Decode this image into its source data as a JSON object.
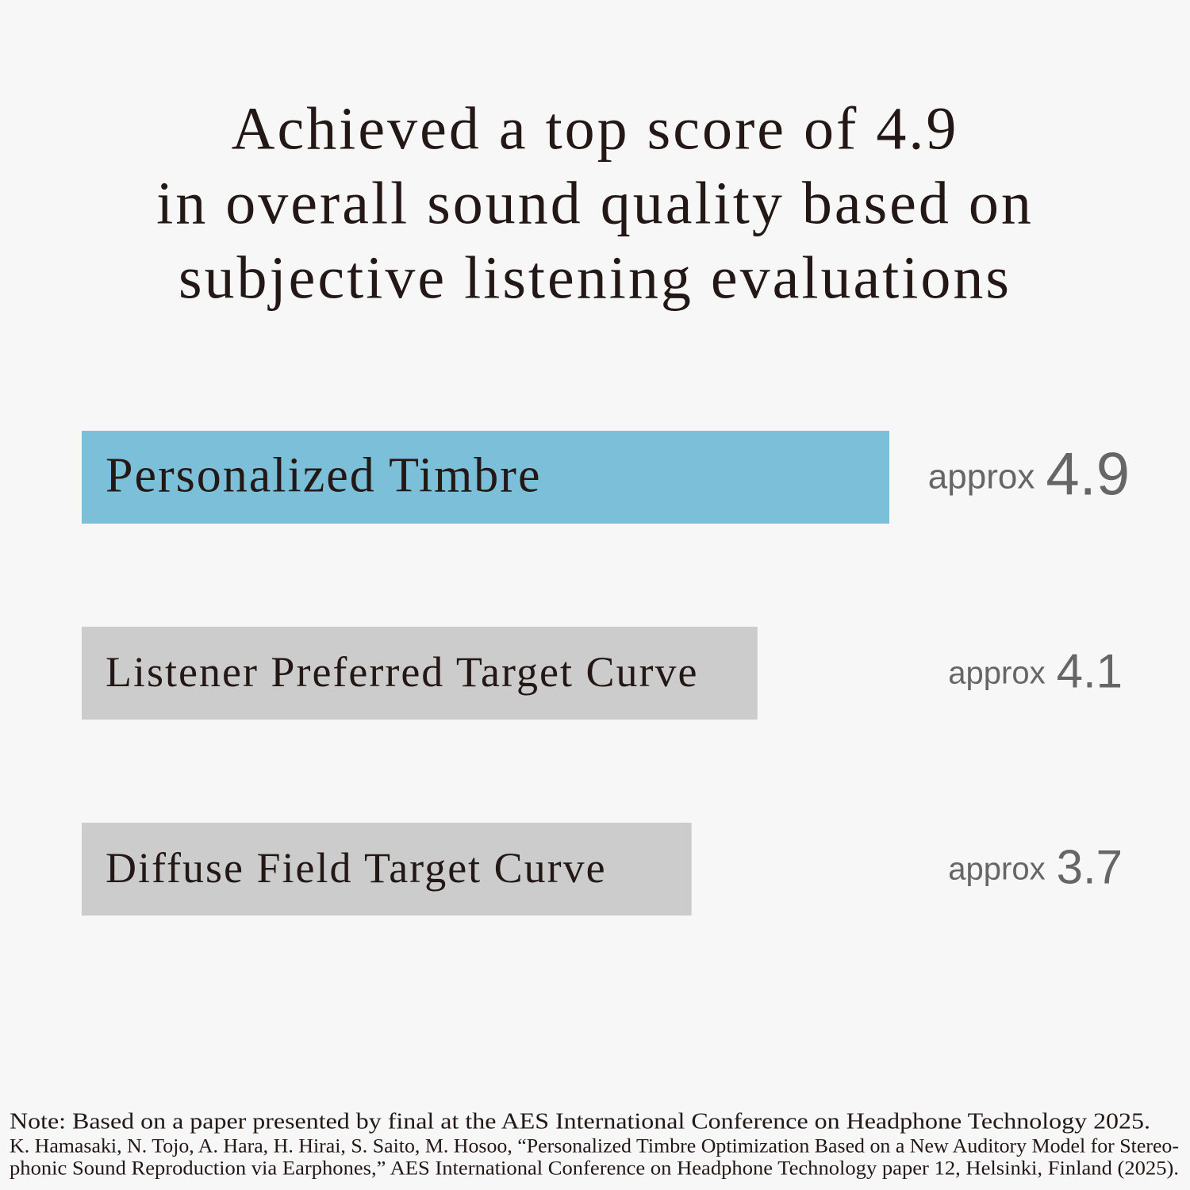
{
  "chart_data": {
    "type": "bar",
    "title": [
      "Achieved a top score of 4.9",
      "in overall sound quality based on",
      "subjective listening evaluations"
    ],
    "categories": [
      "Personalized Timbre",
      "Listener Preferred Target Curve",
      "Diffuse Field Target Curve"
    ],
    "values": [
      4.9,
      4.1,
      3.7
    ],
    "colors": [
      "#7bbfd9",
      "#cccccc",
      "#cccccc"
    ],
    "value_prefix": "approx",
    "note": [
      "Note: Based on a paper presented by final at the AES International Conference on Headphone Technology 2025.",
      "K. Hamasaki, N. Tojo, A. Hara, H. Hirai, S. Saito, M. Hosoo, “Personalized Timbre Optimization Based on a New Auditory Model for Stereo-",
      "phonic Sound Reproduction via Earphones,” AES International Conference on Headphone Technology paper 12, Helsinki, Finland (2025)."
    ]
  }
}
